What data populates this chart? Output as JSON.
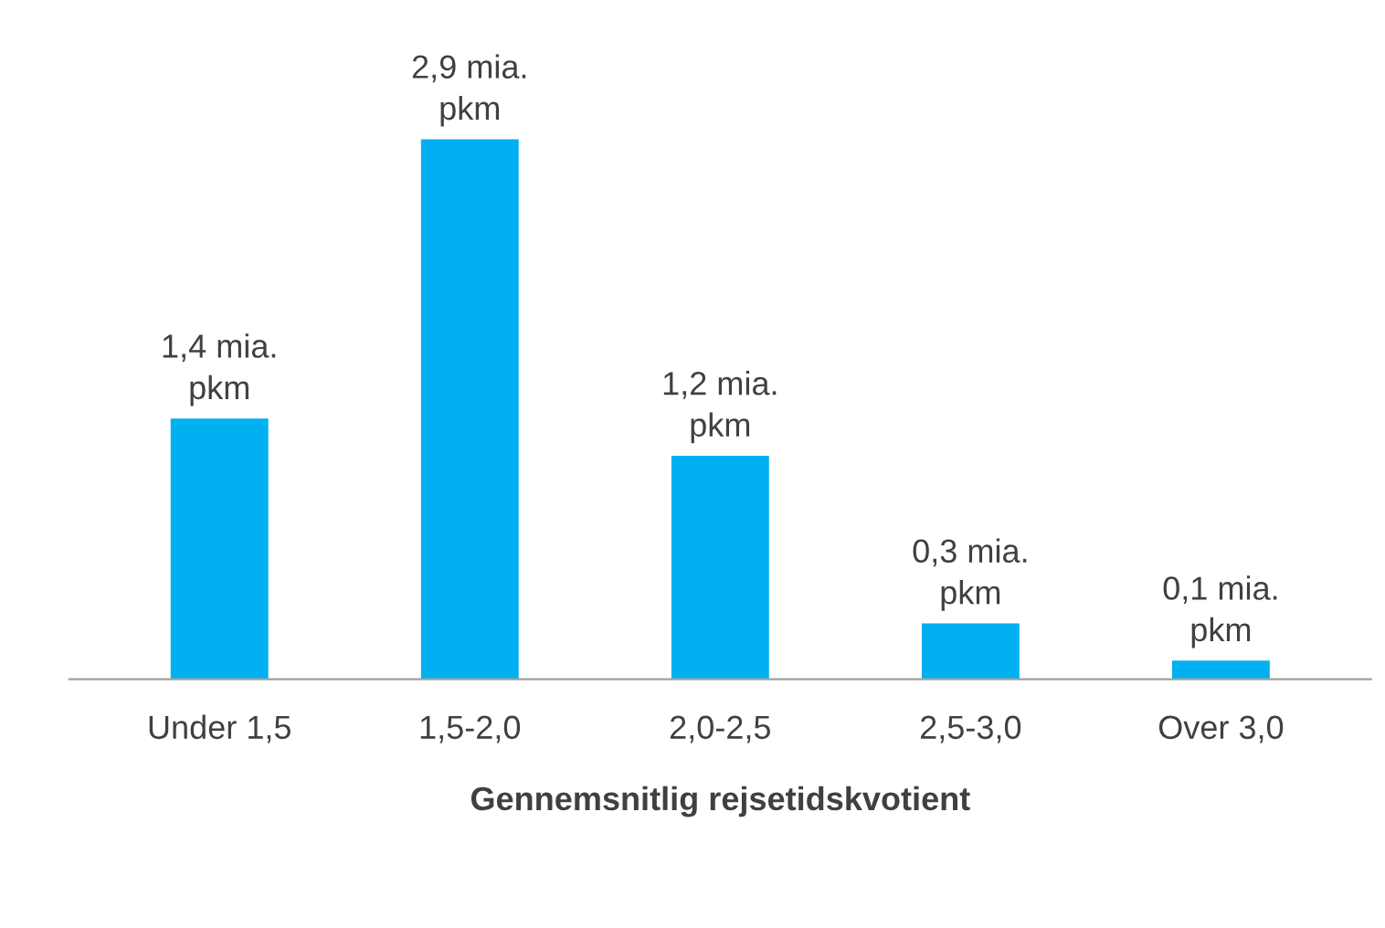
{
  "chart_data": {
    "type": "bar",
    "xlabel": "Gennemsnitlig rejsetidskvotient",
    "categories": [
      "Under 1,5",
      "1,5-2,0",
      "2,0-2,5",
      "2,5-3,0",
      "Over 3,0"
    ],
    "values": [
      1.4,
      2.9,
      1.2,
      0.3,
      0.1
    ],
    "value_labels": [
      "1,4 mia.\npkm",
      "2,9 mia.\npkm",
      "1,2 mia.\npkm",
      "0,3 mia.\npkm",
      "0,1 mia.\npkm"
    ],
    "color": "#00b0f0",
    "tick_labels": "x",
    "grid": false,
    "legend": false
  }
}
